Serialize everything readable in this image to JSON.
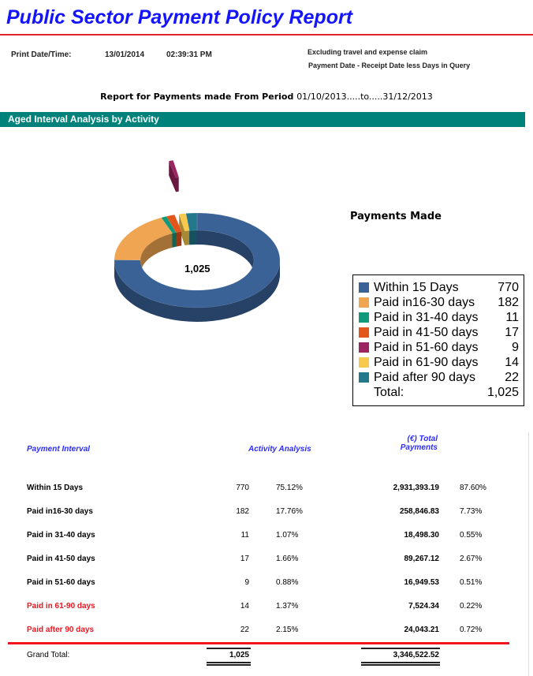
{
  "header": {
    "title": "Public Sector Payment Policy Report",
    "print_label": "Print Date/Time:",
    "print_date": "13/01/2014",
    "print_time": "02:39:31 PM",
    "note1": "Excluding travel and expense claim",
    "note2": "Payment Date - Receipt  Date less Days in Query",
    "period_prefix": "Report for Payments made From Period",
    "period_range": "01/10/2013.....to.....31/12/2013"
  },
  "section": {
    "title": "Aged Interval Analysis by Activity"
  },
  "chart_data": {
    "type": "pie",
    "variant": "3d-donut",
    "title": "Payments Made",
    "center_label": "1,025",
    "legend_position": "right",
    "categories": [
      "Within 15 Days",
      "Paid in16-30 days",
      "Paid in 31-40 days",
      "Paid in 41-50 days",
      "Paid in 51-60 days",
      "Paid in 61-90 days",
      "Paid after 90 days"
    ],
    "values": [
      770,
      182,
      11,
      17,
      9,
      14,
      22
    ],
    "colors": [
      "#3a6296",
      "#f0a552",
      "#0f9a7c",
      "#e2561c",
      "#9b2560",
      "#f7c94d",
      "#23788c"
    ],
    "exploded": [
      "Paid in 51-60 days"
    ],
    "legend_values": [
      "770",
      "182",
      "11",
      "17",
      "9",
      "14",
      "22"
    ],
    "total_label": "Total:",
    "total_value": "1,025"
  },
  "table": {
    "headers": {
      "interval": "Payment Interval",
      "activity": "Activity Analysis",
      "total_line1": "(€) Total",
      "total_line2": "Payments"
    },
    "rows": [
      {
        "label": "Within 15 Days",
        "count": "770",
        "pct": "75.12%",
        "total": "2,931,393.19",
        "total_pct": "87.60%"
      },
      {
        "label": "Paid in16-30 days",
        "count": "182",
        "pct": "17.76%",
        "total": "258,846.83",
        "total_pct": "7.73%"
      },
      {
        "label": "Paid in 31-40 days",
        "count": "11",
        "pct": "1.07%",
        "total": "18,498.30",
        "total_pct": "0.55%"
      },
      {
        "label": "Paid in 41-50 days",
        "count": "17",
        "pct": "1.66%",
        "total": "89,267.12",
        "total_pct": "2.67%"
      },
      {
        "label": "Paid in 51-60 days",
        "count": "9",
        "pct": "0.88%",
        "total": "16,949.53",
        "total_pct": "0.51%"
      },
      {
        "label": "Paid in 61-90 days",
        "count": "14",
        "pct": "1.37%",
        "total": "7,524.34",
        "total_pct": "0.22%"
      },
      {
        "label": "Paid after 90 days",
        "count": "22",
        "pct": "2.15%",
        "total": "24,043.21",
        "total_pct": "0.72%"
      }
    ],
    "highlight_color": "#f0141e",
    "grand_total": {
      "label": "Grand Total:",
      "count": "1,025",
      "total": "3,346,522.52"
    }
  }
}
